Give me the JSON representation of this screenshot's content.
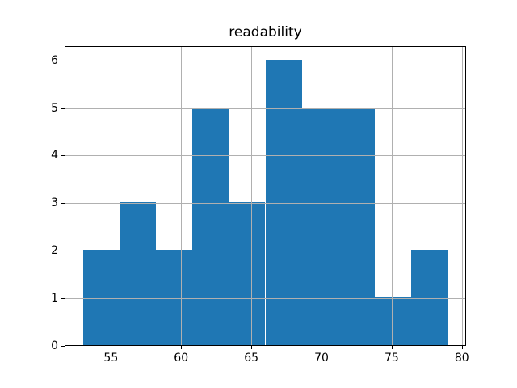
{
  "chart_data": {
    "type": "bar",
    "subtype": "histogram",
    "title": "readability",
    "xlabel": "",
    "ylabel": "",
    "bin_edges": [
      53.0,
      55.6,
      58.2,
      60.8,
      63.4,
      66.0,
      68.6,
      71.2,
      73.8,
      76.4,
      79.0
    ],
    "counts": [
      2,
      3,
      2,
      5,
      3,
      6,
      5,
      5,
      1,
      2
    ],
    "x_tick_labels": [
      "55",
      "60",
      "65",
      "70",
      "75",
      "80"
    ],
    "x_ticks": [
      55,
      60,
      65,
      70,
      75,
      80
    ],
    "y_tick_labels": [
      "0",
      "1",
      "2",
      "3",
      "4",
      "5",
      "6"
    ],
    "y_ticks": [
      0,
      1,
      2,
      3,
      4,
      5,
      6
    ],
    "xlim": [
      51.7,
      80.3
    ],
    "ylim": [
      0,
      6.3
    ],
    "grid": true,
    "legend": null,
    "bar_color": "#1f77b4",
    "grid_color": "#b0b0b0",
    "axis_color": "#000000",
    "background_color": "#ffffff"
  }
}
